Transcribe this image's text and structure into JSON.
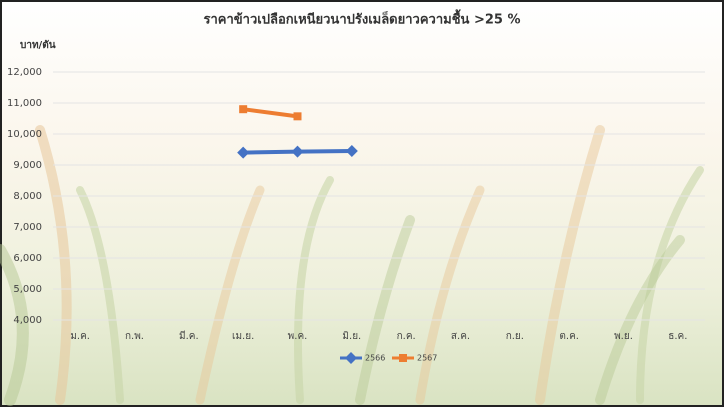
{
  "chart_data": {
    "type": "line",
    "title": "ราคาข้าวเปลือกเหนียวนาปรังเมล็ดยาวความชื้น >25 %",
    "y_label": "บาท/ตัน",
    "categories": [
      "ม.ค.",
      "ก.พ.",
      "มี.ค.",
      "เม.ย.",
      "พ.ค.",
      "มิ.ย.",
      "ก.ค.",
      "ส.ค.",
      "ก.ย.",
      "ต.ค.",
      "พ.ย.",
      "ธ.ค."
    ],
    "series": [
      {
        "name": "2566",
        "color": "#4472c4",
        "marker": "diamond",
        "values": [
          null,
          null,
          null,
          9400,
          9430,
          9450,
          null,
          null,
          null,
          null,
          null,
          null
        ]
      },
      {
        "name": "2567",
        "color": "#ed7d31",
        "marker": "square",
        "values": [
          null,
          null,
          null,
          10800,
          10570,
          null,
          null,
          null,
          null,
          null,
          null,
          null
        ]
      }
    ],
    "ylim": [
      4000,
      12000
    ],
    "yticks": [
      {
        "value": 4000,
        "label": "4,000"
      },
      {
        "value": 5000,
        "label": "5,000"
      },
      {
        "value": 6000,
        "label": "6,000"
      },
      {
        "value": 7000,
        "label": "7,000"
      },
      {
        "value": 8000,
        "label": "8,000"
      },
      {
        "value": 9000,
        "label": "9,000"
      },
      {
        "value": 10000,
        "label": "10,000"
      },
      {
        "value": 11000,
        "label": "11,000"
      },
      {
        "value": 12000,
        "label": "12,000"
      }
    ],
    "grid": true,
    "legend": "bottom"
  }
}
